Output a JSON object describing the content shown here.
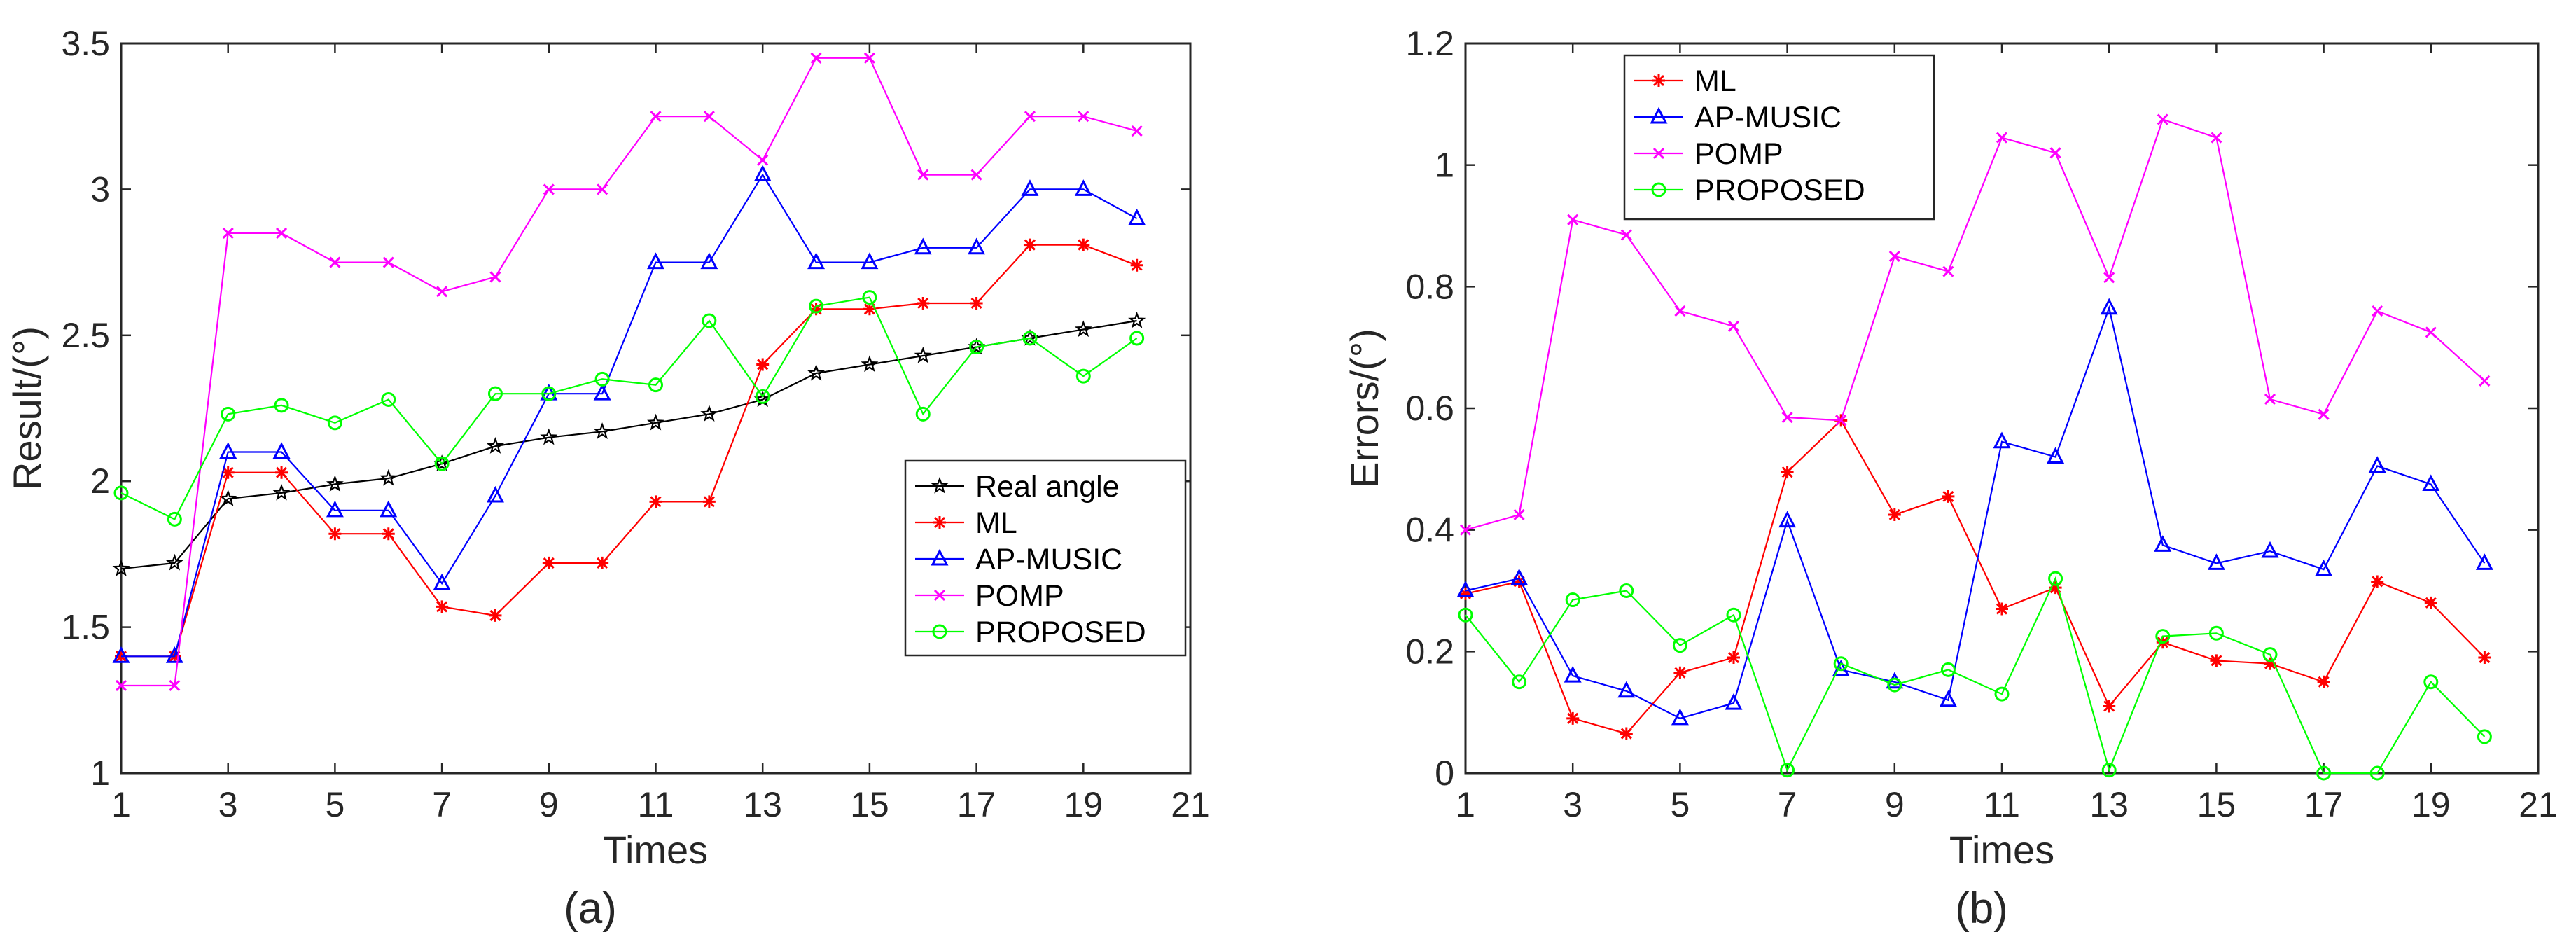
{
  "chart_data": [
    {
      "type": "line",
      "caption": "(a)",
      "xlabel": "Times",
      "ylabel": "Result/(°)",
      "xlim": [
        1,
        21
      ],
      "ylim": [
        1,
        3.5
      ],
      "xticks": [
        "1",
        "3",
        "5",
        "7",
        "9",
        "11",
        "13",
        "15",
        "17",
        "19",
        "21"
      ],
      "yticks": [
        "1",
        "1.5",
        "2",
        "2.5",
        "3",
        "3.5"
      ],
      "legend_position": "bottom-right",
      "x": [
        1,
        2,
        3,
        4,
        5,
        6,
        7,
        8,
        9,
        10,
        11,
        12,
        13,
        14,
        15,
        16,
        17,
        18,
        19,
        20
      ],
      "series": [
        {
          "name": "Real angle",
          "color": "#000000",
          "marker": "star",
          "values": [
            1.7,
            1.72,
            1.94,
            1.96,
            1.99,
            2.01,
            2.06,
            2.12,
            2.15,
            2.17,
            2.2,
            2.23,
            2.28,
            2.37,
            2.4,
            2.43,
            2.46,
            2.49,
            2.52,
            2.55
          ]
        },
        {
          "name": "ML",
          "color": "#ff0000",
          "marker": "asterisk",
          "values": [
            1.4,
            1.4,
            2.03,
            2.03,
            1.82,
            1.82,
            1.57,
            1.54,
            1.72,
            1.72,
            1.93,
            1.93,
            2.4,
            2.59,
            2.59,
            2.61,
            2.61,
            2.81,
            2.81,
            2.74
          ]
        },
        {
          "name": "AP-MUSIC",
          "color": "#0000ff",
          "marker": "triangle",
          "values": [
            1.4,
            1.4,
            2.1,
            2.1,
            1.9,
            1.9,
            1.65,
            1.95,
            2.3,
            2.3,
            2.75,
            2.75,
            3.05,
            2.75,
            2.75,
            2.8,
            2.8,
            3.0,
            3.0,
            2.9
          ]
        },
        {
          "name": "POMP",
          "color": "#ff00ff",
          "marker": "cross",
          "values": [
            1.3,
            1.3,
            2.85,
            2.85,
            2.75,
            2.75,
            2.65,
            2.7,
            3.0,
            3.0,
            3.25,
            3.25,
            3.1,
            3.45,
            3.45,
            3.05,
            3.05,
            3.25,
            3.25,
            3.2
          ]
        },
        {
          "name": "PROPOSED",
          "color": "#00ff00",
          "marker": "circle",
          "values": [
            1.96,
            1.87,
            2.23,
            2.26,
            2.2,
            2.28,
            2.06,
            2.3,
            2.3,
            2.35,
            2.33,
            2.55,
            2.29,
            2.6,
            2.63,
            2.23,
            2.46,
            2.49,
            2.36,
            2.49
          ]
        }
      ]
    },
    {
      "type": "line",
      "caption": "(b)",
      "xlabel": "Times",
      "ylabel": "Errors/(°)",
      "xlim": [
        1,
        21
      ],
      "ylim": [
        0,
        1.2
      ],
      "xticks": [
        "1",
        "3",
        "5",
        "7",
        "9",
        "11",
        "13",
        "15",
        "17",
        "19",
        "21"
      ],
      "yticks": [
        "0",
        "0.2",
        "0.4",
        "0.6",
        "0.8",
        "1",
        "1.2"
      ],
      "legend_position": "top-left",
      "x": [
        1,
        2,
        3,
        4,
        5,
        6,
        7,
        8,
        9,
        10,
        11,
        12,
        13,
        14,
        15,
        16,
        17,
        18,
        19,
        20
      ],
      "series": [
        {
          "name": "ML",
          "color": "#ff0000",
          "marker": "asterisk",
          "values": [
            0.295,
            0.315,
            0.09,
            0.065,
            0.165,
            0.19,
            0.495,
            0.58,
            0.425,
            0.455,
            0.27,
            0.305,
            0.11,
            0.215,
            0.185,
            0.18,
            0.15,
            0.315,
            0.28,
            0.19
          ]
        },
        {
          "name": "AP-MUSIC",
          "color": "#0000ff",
          "marker": "triangle",
          "values": [
            0.3,
            0.32,
            0.16,
            0.135,
            0.09,
            0.115,
            0.415,
            0.17,
            0.15,
            0.12,
            0.545,
            0.52,
            0.765,
            0.375,
            0.345,
            0.365,
            0.335,
            0.505,
            0.475,
            0.345
          ]
        },
        {
          "name": "POMP",
          "color": "#ff00ff",
          "marker": "cross",
          "values": [
            0.4,
            0.425,
            0.91,
            0.885,
            0.76,
            0.735,
            0.585,
            0.58,
            0.85,
            0.825,
            1.045,
            1.02,
            0.815,
            1.075,
            1.045,
            0.615,
            0.59,
            0.76,
            0.725,
            0.645
          ]
        },
        {
          "name": "PROPOSED",
          "color": "#00ff00",
          "marker": "circle",
          "values": [
            0.26,
            0.15,
            0.285,
            0.3,
            0.21,
            0.26,
            0.005,
            0.18,
            0.145,
            0.17,
            0.13,
            0.32,
            0.005,
            0.225,
            0.23,
            0.195,
            0.0,
            0.0,
            0.15,
            0.06
          ]
        }
      ]
    }
  ]
}
